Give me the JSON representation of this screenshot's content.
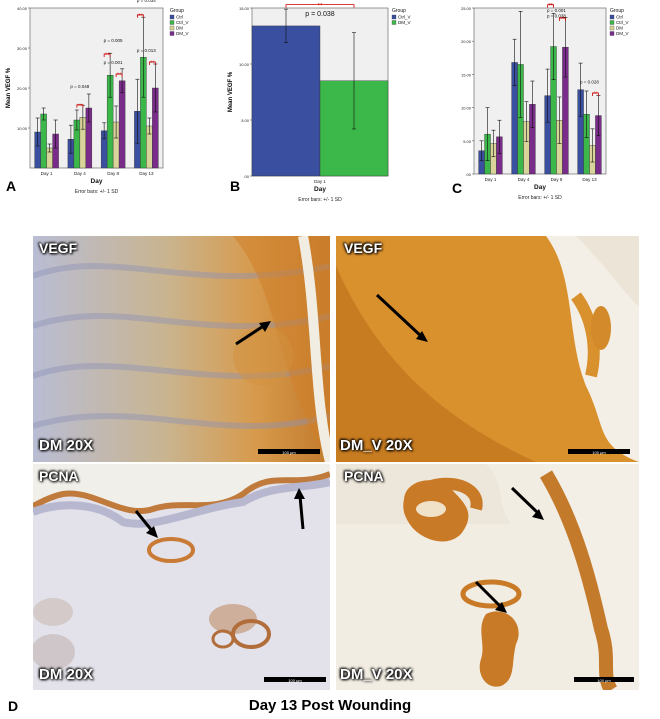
{
  "colors": {
    "Ctrl": "#3a4fa0",
    "Ctrl_V": "#3cb84a",
    "DM": "#d8d49a",
    "DM_V": "#7a2c8a",
    "plot_bg": "#f0f0f0",
    "significance": "#cc0000",
    "stain_brown": "#c7842b",
    "stain_blue": "#aab3d2"
  },
  "common": {
    "legend_title": "Group",
    "x_title": "Day",
    "error_note": "Error bars: +/- 1 SD",
    "sig_stars": "**"
  },
  "chart_data": [
    {
      "panel": "A",
      "type": "bar",
      "ylabel": "Mean VEGF %",
      "xlabel": "Day",
      "ylim": [
        0,
        40
      ],
      "yticks": [
        "10.00",
        "20.00",
        "30.00",
        "40.00"
      ],
      "categories": [
        "Day 1",
        "Day 4",
        "Day 8",
        "Day 13"
      ],
      "series": [
        {
          "name": "Ctrl",
          "values": [
            9.0,
            7.2,
            9.3,
            14.2
          ],
          "errors": [
            3.5,
            3.5,
            2.0,
            8.0
          ]
        },
        {
          "name": "Ctrl_V",
          "values": [
            13.5,
            12.0,
            23.2,
            27.7
          ],
          "errors": [
            1.5,
            2.5,
            5.5,
            10.0
          ]
        },
        {
          "name": "DM",
          "values": [
            5.0,
            12.7,
            11.5,
            10.5
          ],
          "errors": [
            1.0,
            3.0,
            4.0,
            2.0
          ]
        },
        {
          "name": "DM_V",
          "values": [
            8.5,
            15.0,
            21.8,
            20.0
          ],
          "errors": [
            3.5,
            3.5,
            3.0,
            6.0
          ]
        }
      ],
      "annotations": [
        {
          "text": "p = 0.048",
          "category": 1,
          "y": 20.0
        },
        {
          "text": "p = 0.005",
          "category": 2,
          "y": 31.5
        },
        {
          "text": "p = 0.001",
          "category": 2,
          "y": 26.0
        },
        {
          "text": "p = 0.034",
          "category": 3,
          "y": 41.5
        },
        {
          "text": "p = 0.013",
          "category": 3,
          "y": 29.0
        }
      ],
      "brackets": [
        {
          "category": 1,
          "from": 1,
          "to": 2,
          "y": 15.8
        },
        {
          "category": 2,
          "from": 0,
          "to": 1,
          "y": 28.5
        },
        {
          "category": 2,
          "from": 2,
          "to": 3,
          "y": 23.5
        },
        {
          "category": 3,
          "from": 0,
          "to": 1,
          "y": 38.3
        },
        {
          "category": 3,
          "from": 2,
          "to": 3,
          "y": 26.5
        }
      ],
      "legend": [
        "Ctrl",
        "Ctrl_V",
        "DM",
        "DM_V"
      ],
      "error_note": "Error bars: +/- 1 SD"
    },
    {
      "panel": "B",
      "type": "bar",
      "ylabel": "Mean VEGF %",
      "xlabel": "Day",
      "ylim": [
        0,
        15
      ],
      "yticks": [
        ".00",
        "5.00",
        "10.00",
        "15.00"
      ],
      "categories": [
        "Day 1"
      ],
      "series": [
        {
          "name": "Ctrl_V",
          "values": [
            13.4
          ],
          "errors": [
            1.5
          ],
          "color": "#3a4fa0"
        },
        {
          "name": "DM_V",
          "values": [
            8.5
          ],
          "errors": [
            4.3
          ],
          "color": "#3cb84a"
        }
      ],
      "annotations": [
        {
          "text": "p = 0.038",
          "category": 0,
          "y": 14.3
        }
      ],
      "brackets": [
        {
          "category": 0,
          "from": 0,
          "to": 1,
          "y": 15.3
        }
      ],
      "legend": [
        "Ctrl_V",
        "DM_V"
      ],
      "error_note": "Error bars: +/- 1 SD"
    },
    {
      "panel": "C",
      "type": "bar",
      "ylabel": "",
      "xlabel": "Day",
      "ylim": [
        0,
        25
      ],
      "yticks": [
        ".00",
        "5.00",
        "10.00",
        "15.00",
        "20.00",
        "25.00"
      ],
      "categories": [
        "Day 1",
        "Day 4",
        "Day 8",
        "Day 13"
      ],
      "series": [
        {
          "name": "Ctrl",
          "values": [
            3.5,
            16.8,
            11.8,
            12.7
          ],
          "errors": [
            1.5,
            3.5,
            4.0,
            4.0
          ]
        },
        {
          "name": "Ctrl_V",
          "values": [
            6.0,
            16.5,
            19.2,
            9.0
          ],
          "errors": [
            4.0,
            8.0,
            5.0,
            3.5
          ]
        },
        {
          "name": "DM",
          "values": [
            4.6,
            7.9,
            8.1,
            4.3
          ],
          "errors": [
            2.0,
            3.0,
            3.5,
            2.5
          ]
        },
        {
          "name": "DM_V",
          "values": [
            5.6,
            10.5,
            19.1,
            8.8
          ],
          "errors": [
            2.5,
            3.5,
            4.5,
            3.0
          ]
        }
      ],
      "annotations": [
        {
          "text": "p = 0.038",
          "category": 2,
          "y": 23.6
        },
        {
          "text": "p = 0.001",
          "category": 2,
          "y": 24.4
        },
        {
          "text": "p = 0.028",
          "category": 3,
          "y": 13.6
        }
      ],
      "brackets": [
        {
          "category": 2,
          "from": 0,
          "to": 1,
          "y": 25.5
        },
        {
          "category": 2,
          "from": 2,
          "to": 3,
          "y": 23.5
        },
        {
          "category": 3,
          "from": 2,
          "to": 3,
          "y": 12.2
        }
      ],
      "legend": [
        "Ctrl",
        "Ctrl_V",
        "DM",
        "DM_V"
      ],
      "error_note": "Error bars: +/- 1 SD"
    }
  ],
  "panels": {
    "A": "A",
    "B": "B",
    "C": "C",
    "D": "D"
  },
  "micrographs": [
    {
      "stain": "VEGF",
      "label": "DM 20X",
      "scale": "100 µm"
    },
    {
      "stain": "VEGF",
      "label": "DM_V 20X",
      "scale": "100 µm"
    },
    {
      "stain": "PCNA",
      "label": "DM 20X",
      "scale": "100 µm"
    },
    {
      "stain": "PCNA",
      "label": "DM_V 20X",
      "scale": "100 µm"
    }
  ],
  "caption": "Day 13 Post Wounding"
}
